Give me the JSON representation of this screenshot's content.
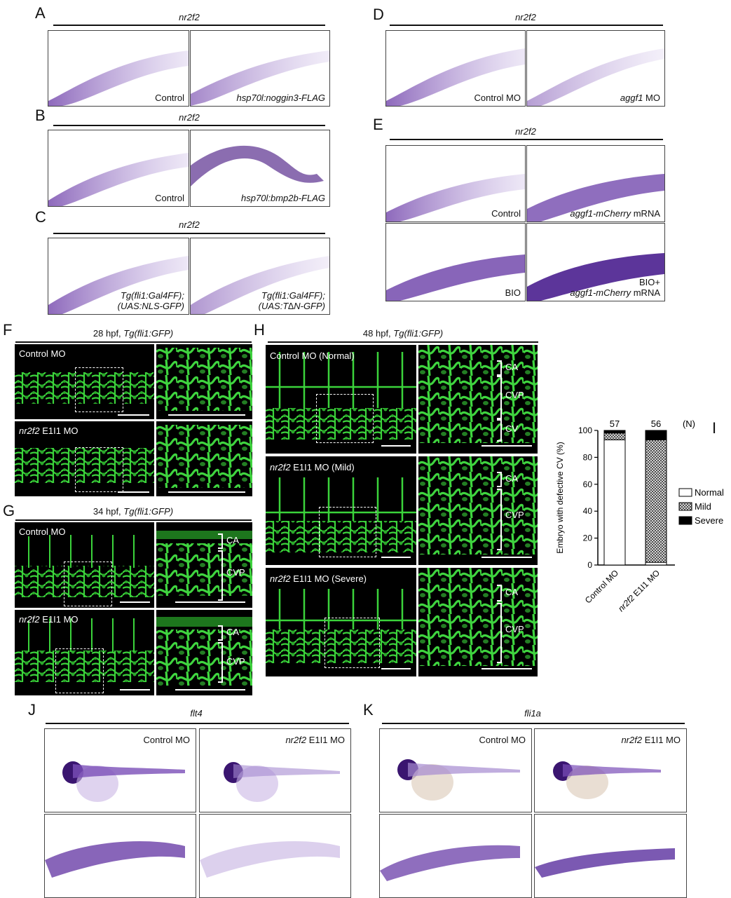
{
  "panels": {
    "A": {
      "label": "A",
      "gene": "nr2f2",
      "left": "Control",
      "right": "hsp70l:noggin3-FLAG"
    },
    "B": {
      "label": "B",
      "gene": "nr2f2",
      "left": "Control",
      "right": "hsp70l:bmp2b-FLAG"
    },
    "C": {
      "label": "C",
      "gene": "nr2f2",
      "left_l1": "Tg(fli1:Gal4FF);",
      "left_l2": "(UAS:NLS-GFP)",
      "right_l1": "Tg(fli1:Gal4FF);",
      "right_l2": "(UAS:T∆N-GFP)"
    },
    "D": {
      "label": "D",
      "gene": "nr2f2",
      "left": "Control MO",
      "right_gene": "aggf1",
      "right_suffix": " MO"
    },
    "E": {
      "label": "E",
      "gene": "nr2f2",
      "tl": "Control",
      "tr_gene": "aggf1-mCherry",
      "tr_suffix": " mRNA",
      "bl": "BIO",
      "br_l1": "BIO+",
      "br_gene": "aggf1-mCherry",
      "br_suffix": " mRNA"
    },
    "F": {
      "label": "F",
      "title_prefix": "28 hpf, ",
      "title_tg": "Tg(fli1:GFP)",
      "top": "Control MO",
      "bottom_gene": "nr2f2",
      "bottom_suffix": " E1I1 MO"
    },
    "G": {
      "label": "G",
      "title_prefix": "34 hpf, ",
      "title_tg": "Tg(fli1:GFP)",
      "top": "Control MO",
      "bottom_gene": "nr2f2",
      "bottom_suffix": " E1I1 MO",
      "ca": "CA",
      "cvp": "CVP"
    },
    "H": {
      "label": "H",
      "title_prefix": "48 hpf, ",
      "title_tg": "Tg(fli1:GFP)",
      "top": "Control MO (Normal)",
      "mid_gene": "nr2f2",
      "mid_suffix": " E1I1 MO (Mild)",
      "bot_gene": "nr2f2",
      "bot_suffix": " E1I1 MO (Severe)",
      "ca": "CA",
      "cvp": "CVP",
      "cv": "CV"
    },
    "J": {
      "label": "J",
      "gene": "flt4",
      "left": "Control MO",
      "right_gene": "nr2f2",
      "right_suffix": " E1I1 MO"
    },
    "K": {
      "label": "K",
      "gene": "fli1a",
      "left": "Control MO",
      "right_gene": "nr2f2",
      "right_suffix": " E1I1 MO"
    }
  },
  "chart_data": {
    "type": "bar",
    "label": "I",
    "stacked": true,
    "ylabel": "Embryo with defective CV (%)",
    "ylim": [
      0,
      100
    ],
    "yticks": [
      0,
      20,
      40,
      60,
      80,
      100
    ],
    "categories": [
      "Control MO",
      "nr2f2 E1I1 MO"
    ],
    "category_gene": [
      "",
      "nr2f2"
    ],
    "category_text": [
      "Control MO",
      " E1I1 MO"
    ],
    "n_values": [
      "57",
      "56"
    ],
    "n_label": "(N)",
    "series": [
      {
        "name": "Normal",
        "values": [
          93,
          2
        ],
        "color": "#ffffff"
      },
      {
        "name": "Mild",
        "values": [
          5,
          91
        ],
        "color": "hatch"
      },
      {
        "name": "Severe",
        "values": [
          2,
          7
        ],
        "color": "#000000"
      }
    ]
  }
}
